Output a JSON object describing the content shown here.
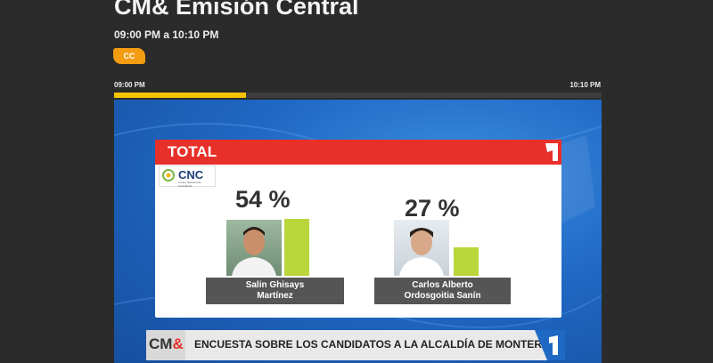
{
  "program": {
    "title": "CM& Emisión Central",
    "time_range": "09:00 PM a 10:10 PM",
    "badge": "CC"
  },
  "timeline": {
    "start": "09:00 PM",
    "end": "10:10 PM",
    "progress": 0.27
  },
  "video": {
    "header": "TOTAL",
    "logo": "CNC",
    "logo_subtext": "Centro Nacional de Consultoría",
    "candidates": [
      {
        "percent": "54 %",
        "value": 54,
        "name_line1": "Salin Ghisays",
        "name_line2": "Martínez"
      },
      {
        "percent": "27 %",
        "value": 27,
        "name_line1": "Carlos Alberto",
        "name_line2": "Ordosgoitia Sanín"
      }
    ],
    "ticker_brand_a": "CM",
    "ticker_brand_b": "&",
    "ticker_text": "ENCUESTA SOBRE LOS CANDIDATOS A LA ALCALDÍA DE MONTERÍA",
    "colors": {
      "accent": "#e8302a",
      "bar": "#b9d63a",
      "progress": "#f5c400",
      "badge": "#f39c12"
    }
  }
}
